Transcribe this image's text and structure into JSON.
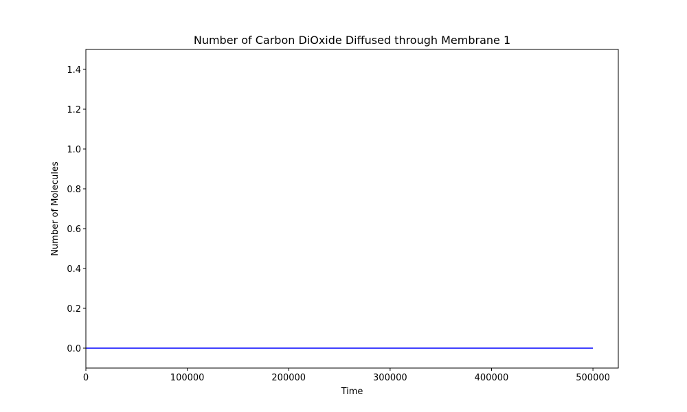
{
  "chart_data": {
    "type": "line",
    "title": "Number of Carbon DiOxide Diffused through Membrane 1",
    "xlabel": "Time",
    "ylabel": "Number of Molecules",
    "xlim": [
      0,
      525000
    ],
    "ylim": [
      -0.1,
      1.5
    ],
    "xticks": [
      0,
      100000,
      200000,
      300000,
      400000,
      500000
    ],
    "xtick_labels": [
      "0",
      "100000",
      "200000",
      "300000",
      "400000",
      "500000"
    ],
    "yticks": [
      0.0,
      0.2,
      0.4,
      0.6,
      0.8,
      1.0,
      1.2,
      1.4
    ],
    "ytick_labels": [
      "0.0",
      "0.2",
      "0.4",
      "0.6",
      "0.8",
      "1.0",
      "1.2",
      "1.4"
    ],
    "grid": false,
    "series": [
      {
        "color": "#0000ff",
        "x": [
          0,
          500000
        ],
        "y": [
          0,
          0
        ]
      }
    ]
  }
}
